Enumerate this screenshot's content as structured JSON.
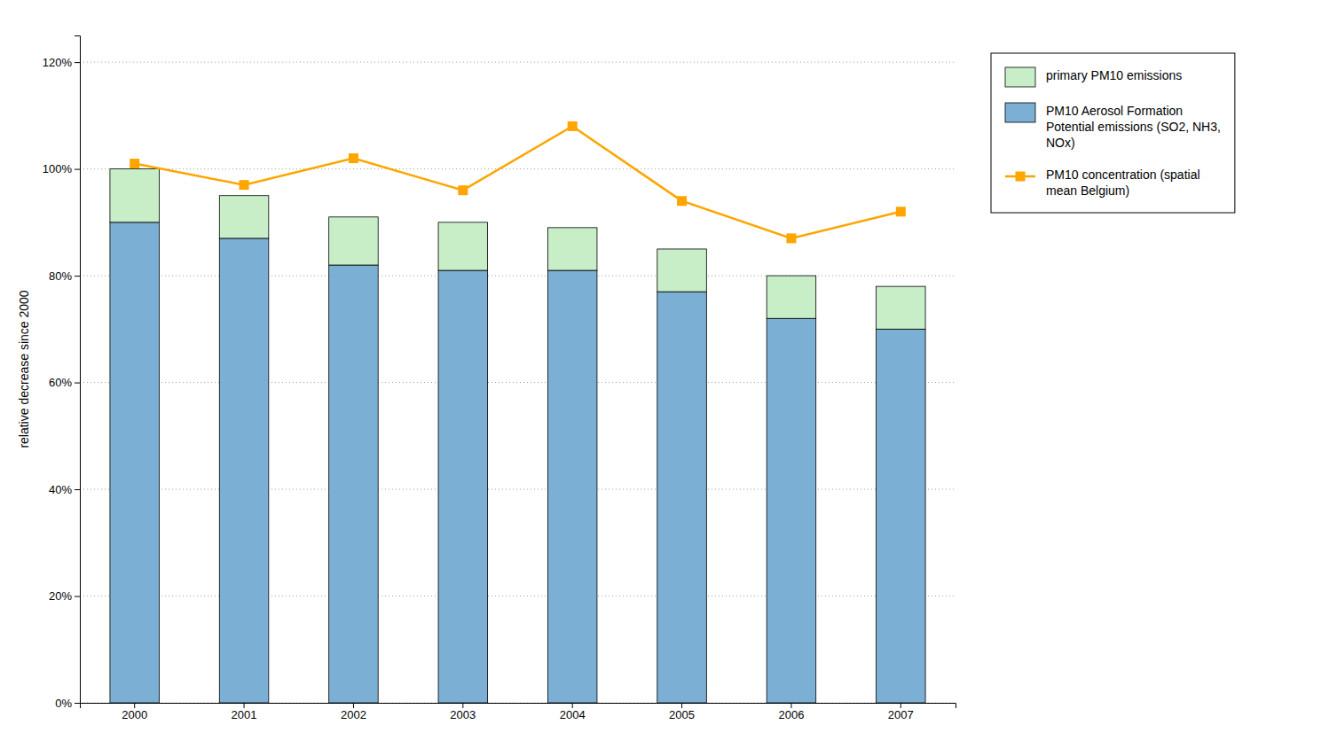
{
  "chart_data": {
    "type": "bar",
    "stacked": true,
    "categories": [
      "2000",
      "2001",
      "2002",
      "2003",
      "2004",
      "2005",
      "2006",
      "2007"
    ],
    "ylabel": "relative decrease since 2000",
    "ylim": [
      0,
      125
    ],
    "yticks": [
      {
        "value": 0,
        "label": "0%"
      },
      {
        "value": 20,
        "label": "20%"
      },
      {
        "value": 40,
        "label": "40%"
      },
      {
        "value": 60,
        "label": "60%"
      },
      {
        "value": 80,
        "label": "80%"
      },
      {
        "value": 100,
        "label": "100%"
      },
      {
        "value": 120,
        "label": "120%"
      }
    ],
    "grid": true,
    "legend": "right",
    "series": [
      {
        "name": "PM10 Aerosol Formation\nPotential emissions (SO2, NH3,\nNOx)",
        "color": "#7BAFD4",
        "values": [
          90,
          87,
          82,
          81,
          81,
          77,
          72,
          70
        ]
      },
      {
        "name": "primary PM10 emissions",
        "color": "#C8EEC8",
        "values": [
          10,
          8,
          9,
          9,
          8,
          8,
          8,
          8
        ]
      },
      {
        "name": "PM10 concentration (spatial\nmean Belgium)",
        "type": "line",
        "color": "#FFA500",
        "marker": "square",
        "values": [
          101,
          97,
          102,
          96,
          108,
          94,
          87,
          92
        ]
      }
    ]
  }
}
